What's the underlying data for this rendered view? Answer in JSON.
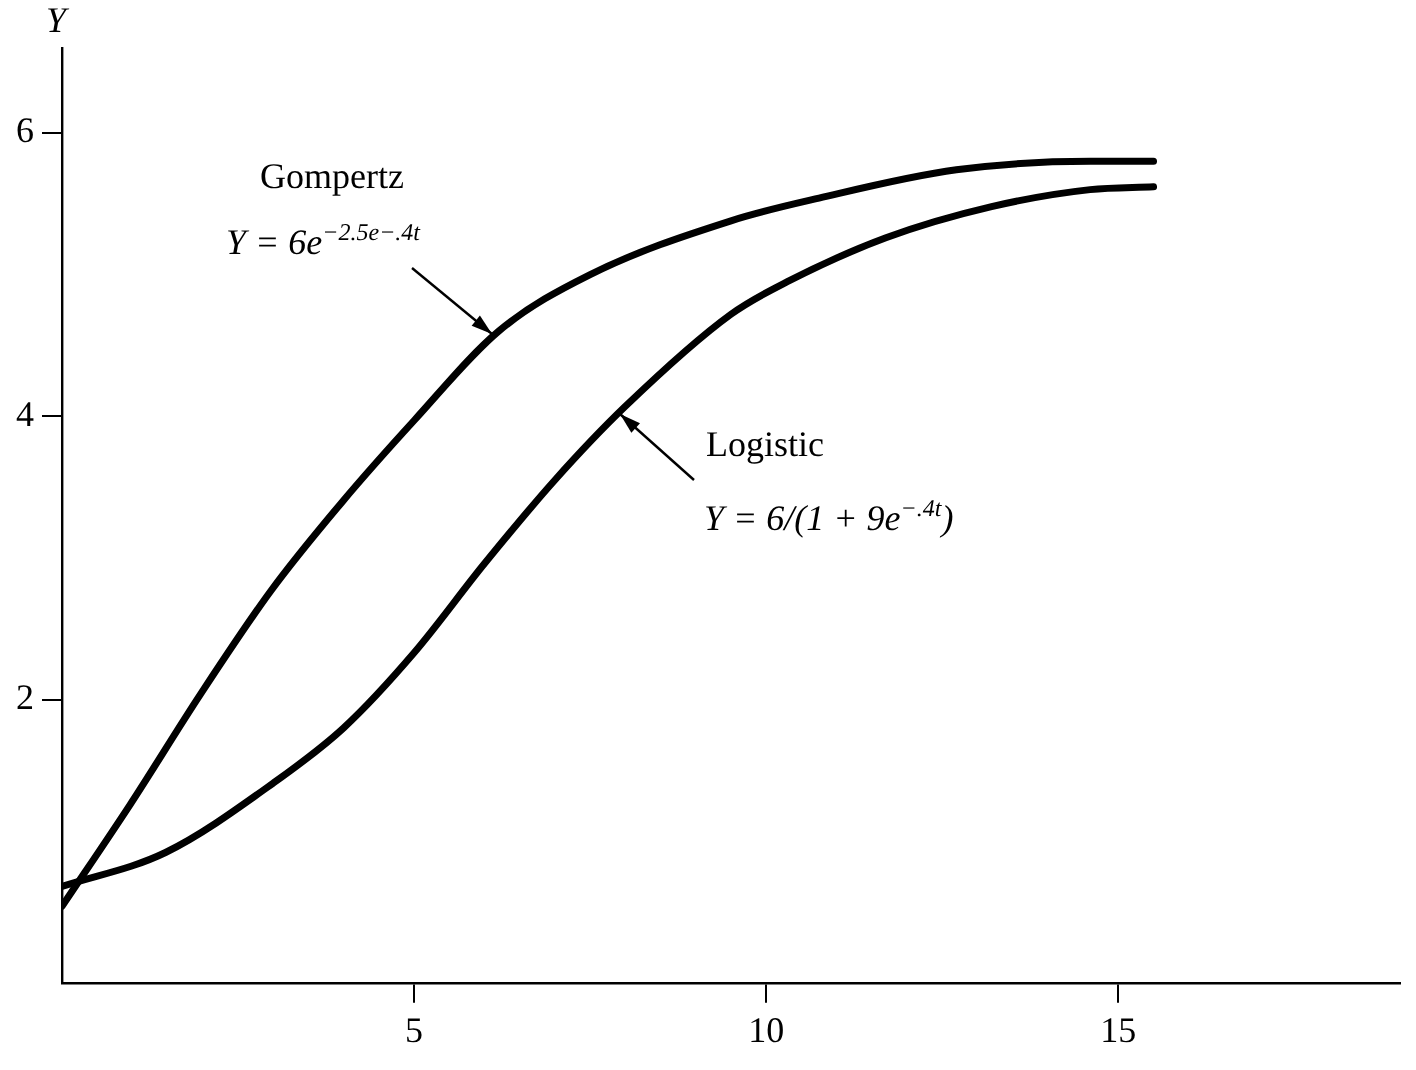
{
  "chart_data": {
    "type": "line",
    "ylabel": "Y",
    "xlim": [
      0,
      19
    ],
    "xticks": [
      5,
      10,
      15
    ],
    "ylim": [
      0,
      6.6
    ],
    "yticks": [
      2,
      4,
      6
    ],
    "grid": false,
    "marker": "none",
    "line_style": "solid",
    "series": [
      {
        "color": "#000000",
        "x": [
          0,
          0.97,
          1.97,
          2.97,
          3.97,
          5,
          6.2,
          7.5,
          9.5,
          10.75,
          12.7,
          14.6,
          15.5
        ],
        "values": [
          0.54,
          1.26,
          2.04,
          2.77,
          3.39,
          3.97,
          4.6,
          5.0,
          5.38,
          5.54,
          5.74,
          5.8,
          5.8
        ]
      },
      {
        "color": "#000000",
        "x": [
          0,
          1.47,
          3,
          4,
          5,
          6,
          7,
          8,
          9.5,
          10.3,
          11.7,
          13.2,
          14.6,
          15.5
        ],
        "values": [
          0.68,
          0.92,
          1.41,
          1.8,
          2.33,
          2.96,
          3.55,
          4.07,
          4.72,
          4.95,
          5.26,
          5.48,
          5.6,
          5.62
        ]
      }
    ],
    "annotations": [
      "Gompertz",
      "Y = 6e$^{−2.5e−.4t}$",
      "Logistic",
      "Y = 6/(1 + 9e$^{−.4t}$)"
    ]
  }
}
